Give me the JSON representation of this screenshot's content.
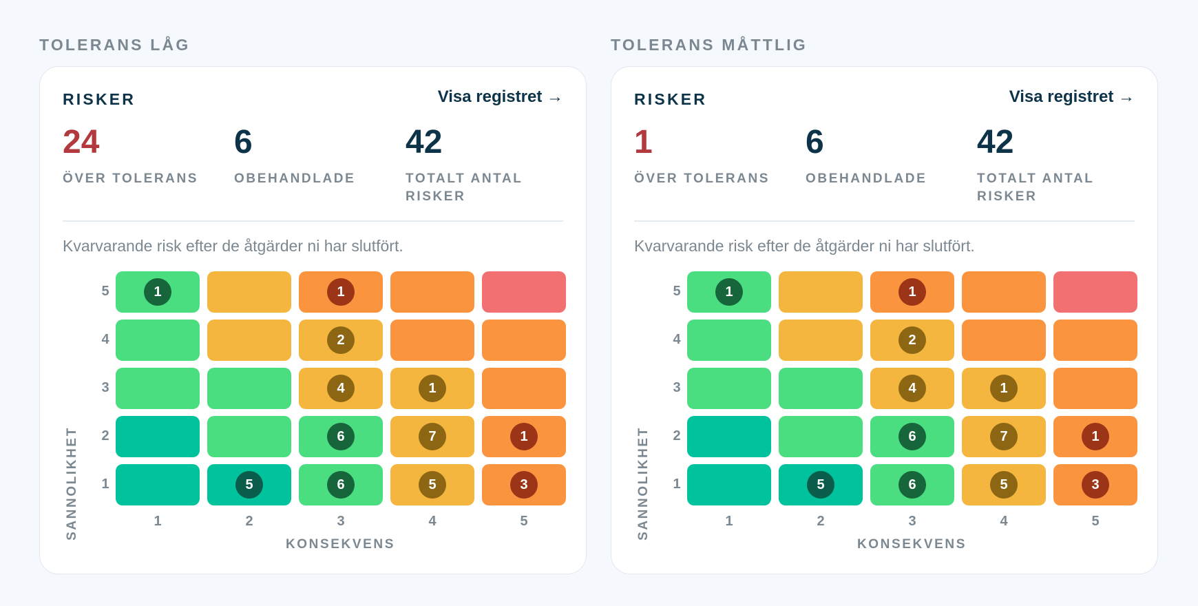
{
  "colors": {
    "teal": "#00c29c",
    "green": "#4ade80",
    "yellow": "#f5b63f",
    "orange": "#fb943e",
    "red": "#f27071",
    "alert_text": "#b23a3f"
  },
  "panels": [
    {
      "section_title": "TOLERANS LÅG",
      "card_title": "RISKER",
      "link_label": "Visa registret →",
      "stats": [
        {
          "value": "24",
          "label": "ÖVER TOLERANS",
          "alert": true
        },
        {
          "value": "6",
          "label": "OBEHANDLADE",
          "alert": false
        },
        {
          "value": "42",
          "label": "TOTALT ANTAL RISKER",
          "alert": false
        }
      ],
      "note": "Kvarvarande risk efter de åtgärder ni har slutfört.",
      "matrix": {
        "y_title": "SANNOLIKHET",
        "x_title": "KONSEKVENS",
        "row_labels": [
          "5",
          "4",
          "3",
          "2",
          "1"
        ],
        "col_labels": [
          "1",
          "2",
          "3",
          "4",
          "5"
        ],
        "rows": [
          {
            "likelihood": "5",
            "cells": [
              {
                "level": "green",
                "count": "1"
              },
              {
                "level": "yellow",
                "count": ""
              },
              {
                "level": "orange",
                "count": "1"
              },
              {
                "level": "orange",
                "count": ""
              },
              {
                "level": "red",
                "count": ""
              }
            ]
          },
          {
            "likelihood": "4",
            "cells": [
              {
                "level": "green",
                "count": ""
              },
              {
                "level": "yellow",
                "count": ""
              },
              {
                "level": "yellow",
                "count": "2"
              },
              {
                "level": "orange",
                "count": ""
              },
              {
                "level": "orange",
                "count": ""
              }
            ]
          },
          {
            "likelihood": "3",
            "cells": [
              {
                "level": "green",
                "count": ""
              },
              {
                "level": "green",
                "count": ""
              },
              {
                "level": "yellow",
                "count": "4"
              },
              {
                "level": "yellow",
                "count": "1"
              },
              {
                "level": "orange",
                "count": ""
              }
            ]
          },
          {
            "likelihood": "2",
            "cells": [
              {
                "level": "teal",
                "count": ""
              },
              {
                "level": "green",
                "count": ""
              },
              {
                "level": "green",
                "count": "6"
              },
              {
                "level": "yellow",
                "count": "7"
              },
              {
                "level": "orange",
                "count": "1"
              }
            ]
          },
          {
            "likelihood": "1",
            "cells": [
              {
                "level": "teal",
                "count": ""
              },
              {
                "level": "teal",
                "count": "5"
              },
              {
                "level": "green",
                "count": "6"
              },
              {
                "level": "yellow",
                "count": "5"
              },
              {
                "level": "orange",
                "count": "3"
              }
            ]
          }
        ]
      }
    },
    {
      "section_title": "TOLERANS MÅTTLIG",
      "card_title": "RISKER",
      "link_label": "Visa registret →",
      "stats": [
        {
          "value": "1",
          "label": "ÖVER TOLERANS",
          "alert": true
        },
        {
          "value": "6",
          "label": "OBEHANDLADE",
          "alert": false
        },
        {
          "value": "42",
          "label": "TOTALT ANTAL RISKER",
          "alert": false
        }
      ],
      "note": "Kvarvarande risk efter de åtgärder ni har slutfört.",
      "matrix": {
        "y_title": "SANNOLIKHET",
        "x_title": "KONSEKVENS",
        "row_labels": [
          "5",
          "4",
          "3",
          "2",
          "1"
        ],
        "col_labels": [
          "1",
          "2",
          "3",
          "4",
          "5"
        ],
        "rows": [
          {
            "likelihood": "5",
            "cells": [
              {
                "level": "green",
                "count": "1"
              },
              {
                "level": "yellow",
                "count": ""
              },
              {
                "level": "orange",
                "count": "1"
              },
              {
                "level": "orange",
                "count": ""
              },
              {
                "level": "red",
                "count": ""
              }
            ]
          },
          {
            "likelihood": "4",
            "cells": [
              {
                "level": "green",
                "count": ""
              },
              {
                "level": "yellow",
                "count": ""
              },
              {
                "level": "yellow",
                "count": "2"
              },
              {
                "level": "orange",
                "count": ""
              },
              {
                "level": "orange",
                "count": ""
              }
            ]
          },
          {
            "likelihood": "3",
            "cells": [
              {
                "level": "green",
                "count": ""
              },
              {
                "level": "green",
                "count": ""
              },
              {
                "level": "yellow",
                "count": "4"
              },
              {
                "level": "yellow",
                "count": "1"
              },
              {
                "level": "orange",
                "count": ""
              }
            ]
          },
          {
            "likelihood": "2",
            "cells": [
              {
                "level": "teal",
                "count": ""
              },
              {
                "level": "green",
                "count": ""
              },
              {
                "level": "green",
                "count": "6"
              },
              {
                "level": "yellow",
                "count": "7"
              },
              {
                "level": "orange",
                "count": "1"
              }
            ]
          },
          {
            "likelihood": "1",
            "cells": [
              {
                "level": "teal",
                "count": ""
              },
              {
                "level": "teal",
                "count": "5"
              },
              {
                "level": "green",
                "count": "6"
              },
              {
                "level": "yellow",
                "count": "5"
              },
              {
                "level": "orange",
                "count": "3"
              }
            ]
          }
        ]
      }
    }
  ]
}
